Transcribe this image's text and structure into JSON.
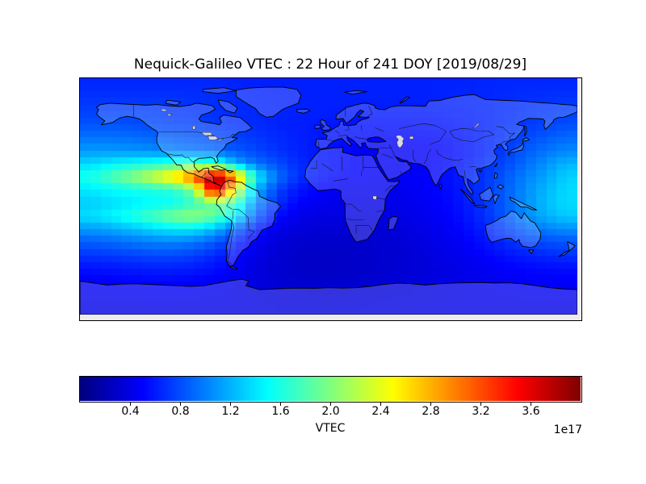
{
  "figure": {
    "title": "Nequick-Galileo VTEC : 22 Hour of 241 DOY [2019/08/29]",
    "background": "#ffffff"
  },
  "chart_data": {
    "type": "heatmap",
    "title": "Nequick-Galileo VTEC : 22 Hour of 241 DOY [2019/08/29]",
    "model": "Nequick-Galileo",
    "quantity": "VTEC",
    "hour": 22,
    "doy": 241,
    "date": "2019/08/29",
    "projection": "equirectangular",
    "lon_range": [
      -180,
      180
    ],
    "lat_range": [
      -90,
      90
    ],
    "colormap": "jet",
    "grid_on": false,
    "legend_position": "colorbar-bottom",
    "colorbar": {
      "orientation": "horizontal",
      "label": "VTEC",
      "offset_text": "1e17",
      "vmin": 0.0,
      "vmax": 4.0,
      "ticks": [
        0.4,
        0.8,
        1.2,
        1.6,
        2.0,
        2.4,
        2.8,
        3.2,
        3.6
      ],
      "tick_labels": [
        "0.4",
        "0.8",
        "1.2",
        "1.6",
        "2.0",
        "2.4",
        "2.8",
        "3.2",
        "3.6"
      ]
    },
    "hotspot": {
      "lon": -85,
      "lat": 9,
      "value_1e17": 3.9
    },
    "grid": {
      "units": "1e17",
      "lat_centers": [
        85,
        75,
        65,
        55,
        45,
        35,
        25,
        15,
        5,
        -5,
        -15,
        -25,
        -35,
        -45,
        -55,
        -65,
        -75,
        -85
      ],
      "lon_centers": [
        -172.5,
        -157.5,
        -142.5,
        -127.5,
        -112.5,
        -97.5,
        -82.5,
        -67.5,
        -52.5,
        -37.5,
        -22.5,
        -7.5,
        7.5,
        22.5,
        37.5,
        52.5,
        67.5,
        82.5,
        97.5,
        112.5,
        127.5,
        142.5,
        157.5,
        172.5
      ],
      "values_1e17": [
        [
          0.65,
          0.65,
          0.65,
          0.65,
          0.65,
          0.65,
          0.65,
          0.63,
          0.62,
          0.62,
          0.62,
          0.62,
          0.62,
          0.62,
          0.62,
          0.62,
          0.62,
          0.63,
          0.63,
          0.64,
          0.65,
          0.65,
          0.65,
          0.65
        ],
        [
          0.7,
          0.7,
          0.7,
          0.7,
          0.7,
          0.68,
          0.68,
          0.66,
          0.64,
          0.63,
          0.62,
          0.62,
          0.62,
          0.62,
          0.62,
          0.62,
          0.62,
          0.63,
          0.64,
          0.65,
          0.66,
          0.68,
          0.69,
          0.7
        ],
        [
          0.75,
          0.75,
          0.75,
          0.74,
          0.72,
          0.7,
          0.68,
          0.67,
          0.65,
          0.64,
          0.63,
          0.62,
          0.61,
          0.6,
          0.6,
          0.6,
          0.6,
          0.61,
          0.62,
          0.64,
          0.66,
          0.69,
          0.72,
          0.74
        ],
        [
          0.82,
          0.82,
          0.8,
          0.78,
          0.76,
          0.74,
          0.71,
          0.68,
          0.66,
          0.63,
          0.61,
          0.6,
          0.58,
          0.57,
          0.56,
          0.56,
          0.56,
          0.58,
          0.6,
          0.63,
          0.67,
          0.72,
          0.76,
          0.8
        ],
        [
          0.95,
          0.95,
          0.93,
          0.9,
          0.87,
          0.84,
          0.8,
          0.76,
          0.71,
          0.66,
          0.62,
          0.59,
          0.56,
          0.53,
          0.52,
          0.52,
          0.52,
          0.54,
          0.58,
          0.63,
          0.7,
          0.78,
          0.85,
          0.91
        ],
        [
          1.1,
          1.1,
          1.08,
          1.05,
          1.0,
          0.95,
          0.9,
          0.84,
          0.77,
          0.69,
          0.63,
          0.58,
          0.54,
          0.5,
          0.48,
          0.48,
          0.48,
          0.51,
          0.56,
          0.63,
          0.73,
          0.85,
          0.95,
          1.03
        ],
        [
          1.35,
          1.45,
          1.52,
          1.6,
          1.68,
          1.78,
          1.7,
          1.2,
          0.95,
          0.8,
          0.67,
          0.59,
          0.54,
          0.49,
          0.47,
          0.47,
          0.48,
          0.52,
          0.58,
          0.67,
          0.78,
          0.92,
          1.08,
          1.22
        ],
        [
          1.6,
          1.82,
          2.05,
          2.35,
          2.7,
          3.2,
          4.0,
          3.0,
          1.5,
          0.95,
          0.7,
          0.58,
          0.52,
          0.49,
          0.47,
          0.47,
          0.49,
          0.54,
          0.61,
          0.71,
          0.84,
          1.0,
          1.15,
          1.32
        ],
        [
          1.42,
          1.5,
          1.56,
          1.62,
          1.66,
          2.0,
          3.8,
          2.5,
          1.2,
          0.76,
          0.58,
          0.5,
          0.45,
          0.44,
          0.44,
          0.44,
          0.47,
          0.52,
          0.6,
          0.7,
          0.86,
          1.05,
          1.22,
          1.36
        ],
        [
          1.3,
          1.36,
          1.42,
          1.48,
          1.52,
          1.7,
          1.95,
          1.7,
          1.05,
          0.68,
          0.5,
          0.44,
          0.42,
          0.41,
          0.41,
          0.42,
          0.45,
          0.5,
          0.58,
          0.69,
          0.86,
          1.06,
          1.25,
          1.36
        ],
        [
          1.38,
          1.48,
          1.62,
          1.8,
          2.0,
          2.1,
          1.9,
          1.48,
          0.88,
          0.55,
          0.42,
          0.39,
          0.38,
          0.38,
          0.38,
          0.4,
          0.43,
          0.48,
          0.56,
          0.68,
          0.85,
          1.04,
          1.2,
          1.3
        ],
        [
          1.1,
          1.16,
          1.24,
          1.34,
          1.42,
          1.42,
          1.22,
          0.9,
          0.6,
          0.42,
          0.36,
          0.34,
          0.33,
          0.33,
          0.34,
          0.36,
          0.4,
          0.45,
          0.52,
          0.62,
          0.75,
          0.9,
          1.0,
          1.06
        ],
        [
          0.86,
          0.9,
          0.95,
          1.0,
          1.02,
          0.97,
          0.85,
          0.65,
          0.45,
          0.35,
          0.31,
          0.3,
          0.3,
          0.3,
          0.32,
          0.34,
          0.38,
          0.42,
          0.48,
          0.56,
          0.65,
          0.74,
          0.8,
          0.83
        ],
        [
          0.7,
          0.72,
          0.75,
          0.78,
          0.78,
          0.74,
          0.65,
          0.52,
          0.4,
          0.33,
          0.3,
          0.28,
          0.28,
          0.29,
          0.31,
          0.33,
          0.36,
          0.4,
          0.44,
          0.5,
          0.56,
          0.61,
          0.65,
          0.68
        ],
        [
          0.56,
          0.58,
          0.6,
          0.62,
          0.62,
          0.6,
          0.55,
          0.46,
          0.38,
          0.32,
          0.29,
          0.28,
          0.28,
          0.29,
          0.31,
          0.33,
          0.35,
          0.38,
          0.41,
          0.45,
          0.49,
          0.52,
          0.54,
          0.55
        ],
        [
          0.48,
          0.49,
          0.5,
          0.51,
          0.51,
          0.5,
          0.47,
          0.42,
          0.37,
          0.33,
          0.31,
          0.3,
          0.3,
          0.31,
          0.33,
          0.35,
          0.37,
          0.39,
          0.41,
          0.43,
          0.45,
          0.47,
          0.48,
          0.48
        ],
        [
          0.44,
          0.44,
          0.45,
          0.45,
          0.45,
          0.44,
          0.43,
          0.41,
          0.39,
          0.37,
          0.36,
          0.35,
          0.35,
          0.36,
          0.37,
          0.38,
          0.39,
          0.4,
          0.41,
          0.42,
          0.43,
          0.44,
          0.44,
          0.44
        ],
        [
          0.41,
          0.41,
          0.41,
          0.41,
          0.41,
          0.41,
          0.41,
          0.4,
          0.39,
          0.38,
          0.38,
          0.38,
          0.38,
          0.38,
          0.39,
          0.39,
          0.4,
          0.4,
          0.41,
          0.41,
          0.41,
          0.41,
          0.41,
          0.41
        ]
      ]
    }
  }
}
